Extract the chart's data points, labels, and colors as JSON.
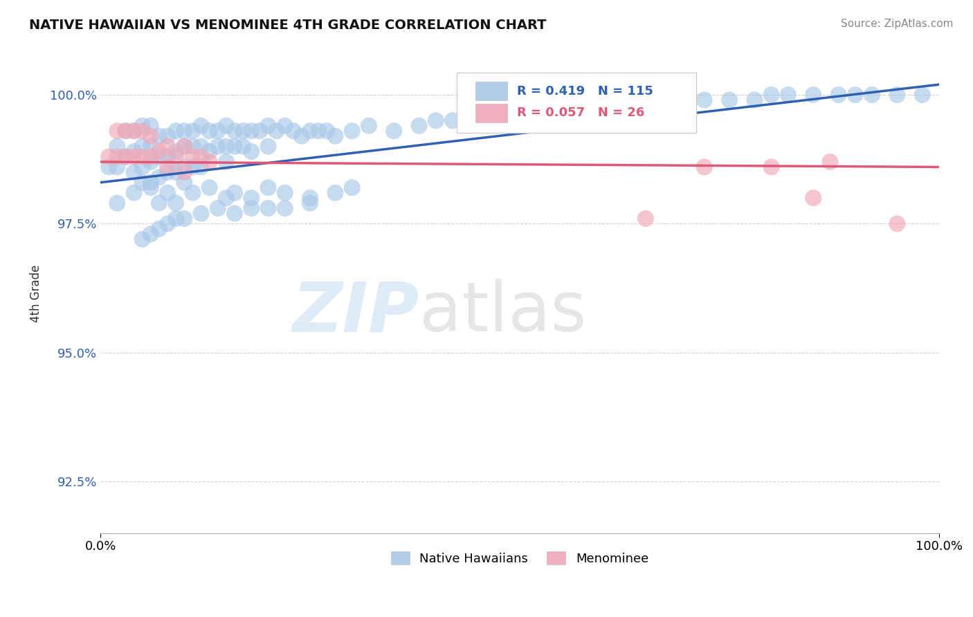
{
  "title": "NATIVE HAWAIIAN VS MENOMINEE 4TH GRADE CORRELATION CHART",
  "source_text": "Source: ZipAtlas.com",
  "ylabel": "4th Grade",
  "xlim": [
    0.0,
    1.0
  ],
  "ylim": [
    0.915,
    1.008
  ],
  "yticks": [
    0.925,
    0.95,
    0.975,
    1.0
  ],
  "ytick_labels": [
    "92.5%",
    "95.0%",
    "97.5%",
    "100.0%"
  ],
  "xtick_labels": [
    "0.0%",
    "100.0%"
  ],
  "legend_r_blue": "0.419",
  "legend_n_blue": "115",
  "legend_r_pink": "0.057",
  "legend_n_pink": "26",
  "blue_color": "#a8c8e8",
  "pink_color": "#f0a8b8",
  "blue_line_color": "#3060b0",
  "pink_line_color": "#e05878",
  "watermark_zip": "ZIP",
  "watermark_atlas": "atlas",
  "blue_trend_y_start": 0.983,
  "blue_trend_y_end": 1.002,
  "pink_trend_y_start": 0.987,
  "pink_trend_y_end": 0.986,
  "blue_scatter_x": [
    0.01,
    0.02,
    0.02,
    0.03,
    0.03,
    0.04,
    0.04,
    0.04,
    0.05,
    0.05,
    0.05,
    0.05,
    0.06,
    0.06,
    0.06,
    0.06,
    0.07,
    0.07,
    0.07,
    0.08,
    0.08,
    0.08,
    0.09,
    0.09,
    0.09,
    0.1,
    0.1,
    0.1,
    0.11,
    0.11,
    0.11,
    0.12,
    0.12,
    0.12,
    0.13,
    0.13,
    0.14,
    0.14,
    0.15,
    0.15,
    0.15,
    0.16,
    0.16,
    0.17,
    0.17,
    0.18,
    0.18,
    0.19,
    0.2,
    0.2,
    0.21,
    0.22,
    0.23,
    0.24,
    0.25,
    0.26,
    0.27,
    0.28,
    0.3,
    0.32,
    0.35,
    0.38,
    0.4,
    0.42,
    0.45,
    0.48,
    0.5,
    0.52,
    0.55,
    0.58,
    0.6,
    0.62,
    0.65,
    0.68,
    0.7,
    0.72,
    0.75,
    0.78,
    0.8,
    0.82,
    0.85,
    0.88,
    0.9,
    0.92,
    0.95,
    0.98,
    0.02,
    0.04,
    0.06,
    0.07,
    0.08,
    0.09,
    0.1,
    0.11,
    0.13,
    0.15,
    0.16,
    0.18,
    0.2,
    0.22,
    0.25,
    0.28,
    0.3,
    0.22,
    0.18,
    0.12,
    0.14,
    0.1,
    0.08,
    0.06,
    0.05,
    0.07,
    0.09,
    0.16,
    0.2,
    0.25
  ],
  "blue_scatter_y": [
    0.986,
    0.99,
    0.986,
    0.993,
    0.988,
    0.993,
    0.989,
    0.985,
    0.994,
    0.99,
    0.986,
    0.983,
    0.994,
    0.99,
    0.987,
    0.983,
    0.992,
    0.988,
    0.984,
    0.992,
    0.988,
    0.985,
    0.993,
    0.989,
    0.985,
    0.993,
    0.99,
    0.986,
    0.993,
    0.99,
    0.986,
    0.994,
    0.99,
    0.986,
    0.993,
    0.989,
    0.993,
    0.99,
    0.994,
    0.99,
    0.987,
    0.993,
    0.99,
    0.993,
    0.99,
    0.993,
    0.989,
    0.993,
    0.994,
    0.99,
    0.993,
    0.994,
    0.993,
    0.992,
    0.993,
    0.993,
    0.993,
    0.992,
    0.993,
    0.994,
    0.993,
    0.994,
    0.995,
    0.995,
    0.996,
    0.996,
    0.996,
    0.997,
    0.997,
    0.997,
    0.998,
    0.998,
    0.998,
    0.998,
    0.999,
    0.999,
    0.999,
    0.999,
    1.0,
    1.0,
    1.0,
    1.0,
    1.0,
    1.0,
    1.0,
    1.0,
    0.979,
    0.981,
    0.982,
    0.979,
    0.981,
    0.979,
    0.983,
    0.981,
    0.982,
    0.98,
    0.981,
    0.98,
    0.982,
    0.981,
    0.98,
    0.981,
    0.982,
    0.978,
    0.978,
    0.977,
    0.978,
    0.976,
    0.975,
    0.973,
    0.972,
    0.974,
    0.976,
    0.977,
    0.978,
    0.979
  ],
  "pink_scatter_x": [
    0.01,
    0.02,
    0.02,
    0.03,
    0.03,
    0.04,
    0.04,
    0.05,
    0.05,
    0.06,
    0.06,
    0.07,
    0.08,
    0.08,
    0.09,
    0.1,
    0.1,
    0.11,
    0.12,
    0.13,
    0.65,
    0.72,
    0.8,
    0.85,
    0.87,
    0.95
  ],
  "pink_scatter_y": [
    0.988,
    0.993,
    0.988,
    0.993,
    0.988,
    0.993,
    0.988,
    0.993,
    0.988,
    0.992,
    0.988,
    0.989,
    0.99,
    0.986,
    0.988,
    0.99,
    0.985,
    0.988,
    0.988,
    0.987,
    0.976,
    0.986,
    0.986,
    0.98,
    0.987,
    0.975
  ]
}
